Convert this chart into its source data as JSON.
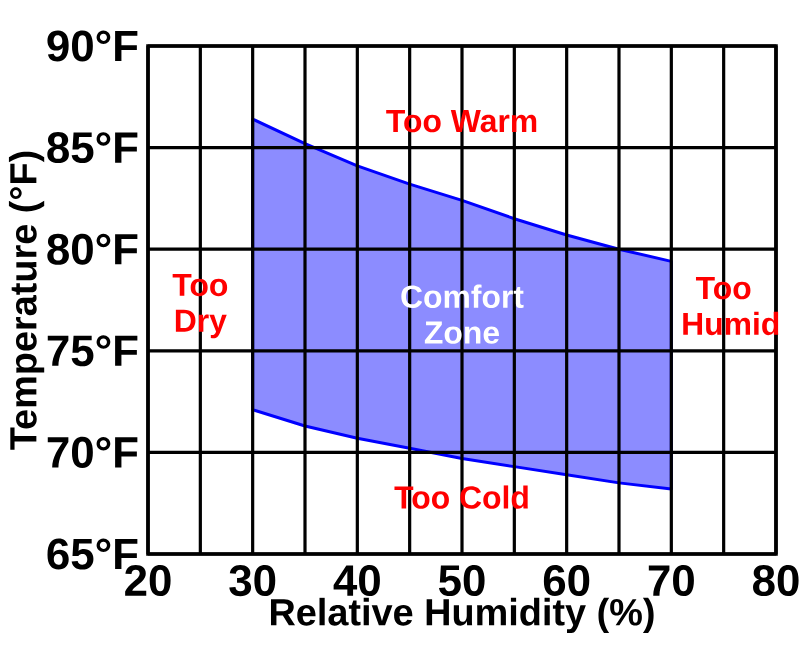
{
  "chart_data": {
    "type": "area",
    "xlabel": "Relative Humidity (%)",
    "ylabel": "Temperature (°F)",
    "series": [
      {
        "color": "#8c8cff",
        "x": [
          30,
          35,
          40,
          45,
          50,
          55,
          60,
          65,
          70
        ],
        "values": [
          null,
          null,
          null,
          null,
          null,
          null,
          null,
          null,
          null
        ],
        "lower": [
          72.1,
          71.3,
          70.7,
          70.2,
          69.7,
          69.3,
          68.9,
          68.5,
          68.2
        ],
        "upper": [
          86.4,
          85.2,
          84.1,
          83.2,
          82.4,
          81.5,
          80.7,
          80.0,
          79.4
        ]
      }
    ],
    "xlim": [
      20,
      80
    ],
    "ylim": [
      65,
      90
    ],
    "xticks": [
      20,
      {
        "value": 25,
        "label": null
      },
      30,
      {
        "value": 35,
        "label": null
      },
      40,
      {
        "value": 45,
        "label": null
      },
      50,
      {
        "value": 55,
        "label": null
      },
      60,
      {
        "value": 65,
        "label": null
      },
      70,
      {
        "value": 75,
        "label": null
      },
      80
    ],
    "yticks": [
      {
        "value": 65,
        "label": "65°F"
      },
      {
        "value": 70,
        "label": "70°F"
      },
      {
        "value": 75,
        "label": "75°F"
      },
      {
        "value": 80,
        "label": "80°F"
      },
      {
        "value": 85,
        "label": "85°F"
      },
      {
        "value": 90,
        "label": "90°F"
      }
    ],
    "grid": true,
    "annotations": [
      "Too Warm",
      "Too Dry",
      "Comfort Zone",
      "Too Humid",
      "Too Cold"
    ]
  }
}
